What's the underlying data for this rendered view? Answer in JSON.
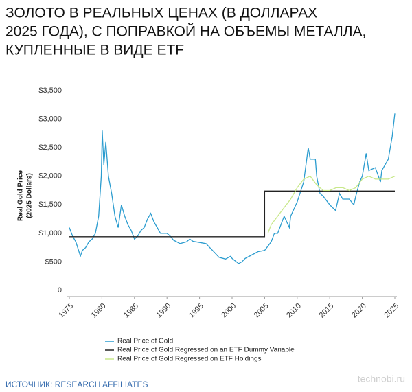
{
  "chart_data": {
    "type": "line",
    "title": [
      "ЗОЛОТО В РЕАЛЬНЫХ ЦЕНАХ (В ДОЛЛАРАХ",
      "2025 ГОДА), С ПОПРАВКОЙ НА ОБЪЕМЫ МЕТАЛЛА,",
      "КУПЛЕННЫЕ В ВИДЕ ETF"
    ],
    "ylabel": [
      "Real Gold Price",
      "(2025 Dollars)"
    ],
    "xlim": [
      1975,
      2025
    ],
    "xticks": [
      1975,
      1980,
      1985,
      1990,
      1995,
      2000,
      2005,
      2010,
      2015,
      2020,
      2025
    ],
    "ylim": [
      0,
      3500
    ],
    "yticks": [
      0,
      {
        "value": 500,
        "label": "$500"
      },
      {
        "value": 1000,
        "label": "$1,000"
      },
      {
        "value": 1500,
        "label": "$1,500"
      },
      {
        "value": 2000,
        "label": "$2,000"
      },
      {
        "value": 2500,
        "label": "$2,500"
      },
      {
        "value": 3000,
        "label": "$3,000"
      },
      {
        "value": 3500,
        "label": "$3,500"
      }
    ],
    "series": [
      {
        "name": "Real Price of Gold",
        "color": "#2b9ccf",
        "x": [
          1975.0,
          1975.5,
          1976.0,
          1976.7,
          1977.0,
          1977.5,
          1978.0,
          1978.5,
          1979.0,
          1979.5,
          1979.9,
          1980.05,
          1980.3,
          1980.6,
          1981.0,
          1981.5,
          1982.0,
          1982.5,
          1983.0,
          1983.5,
          1984.0,
          1984.5,
          1985.0,
          1985.5,
          1986.0,
          1986.5,
          1987.0,
          1987.5,
          1988.0,
          1988.5,
          1989.0,
          1990.0,
          1990.5,
          1991.0,
          1992.0,
          1993.0,
          1993.5,
          1994.0,
          1995.0,
          1996.0,
          1996.5,
          1997.0,
          1998.0,
          1999.0,
          1999.8,
          2000.0,
          2001.0,
          2001.5,
          2002.0,
          2003.0,
          2004.0,
          2005.0,
          2006.0,
          2006.5,
          2007.0,
          2008.0,
          2008.8,
          2009.0,
          2010.0,
          2011.0,
          2011.7,
          2012.0,
          2012.8,
          2013.0,
          2013.5,
          2014.0,
          2015.0,
          2015.9,
          2016.5,
          2017.0,
          2018.0,
          2018.7,
          2019.0,
          2019.6,
          2020.0,
          2020.6,
          2021.0,
          2022.0,
          2022.8,
          2023.0,
          2024.0,
          2024.6,
          2025.0
        ],
        "values": [
          1100,
          950,
          850,
          600,
          700,
          750,
          850,
          900,
          1000,
          1300,
          2000,
          2800,
          2200,
          2600,
          2000,
          1700,
          1300,
          1100,
          1500,
          1300,
          1150,
          1050,
          900,
          950,
          1050,
          1100,
          1250,
          1350,
          1200,
          1100,
          1000,
          1000,
          950,
          880,
          820,
          850,
          900,
          860,
          840,
          820,
          760,
          700,
          580,
          550,
          600,
          560,
          470,
          500,
          560,
          620,
          680,
          700,
          850,
          1000,
          1000,
          1300,
          1100,
          1300,
          1550,
          1900,
          2500,
          2300,
          2300,
          2000,
          1700,
          1650,
          1500,
          1400,
          1700,
          1600,
          1600,
          1500,
          1650,
          1900,
          2000,
          2400,
          2100,
          2150,
          1900,
          2100,
          2300,
          2700,
          3100
        ]
      },
      {
        "name": "Real Price of Gold Regressed on an ETF Dummy Variable",
        "color": "#222222",
        "x": [
          1975,
          2005,
          2005,
          2025
        ],
        "values": [
          940,
          940,
          1740,
          1740
        ]
      },
      {
        "name": "Real Price of Gold Regressed on ETF Holdings",
        "color": "#c8e88a",
        "x": [
          2005.5,
          2006,
          2007,
          2008,
          2009,
          2010,
          2011,
          2012,
          2013,
          2014,
          2015,
          2016,
          2017,
          2018,
          2019,
          2020,
          2021,
          2022,
          2023,
          2024,
          2025
        ],
        "values": [
          1000,
          1150,
          1300,
          1450,
          1600,
          1800,
          1950,
          2000,
          1850,
          1750,
          1750,
          1800,
          1800,
          1750,
          1800,
          1950,
          2000,
          1950,
          1950,
          1950,
          2000
        ]
      }
    ],
    "source": "ИСТОЧНИК: RESEARCH AFFILIATES",
    "watermark": "technobi.ru"
  }
}
